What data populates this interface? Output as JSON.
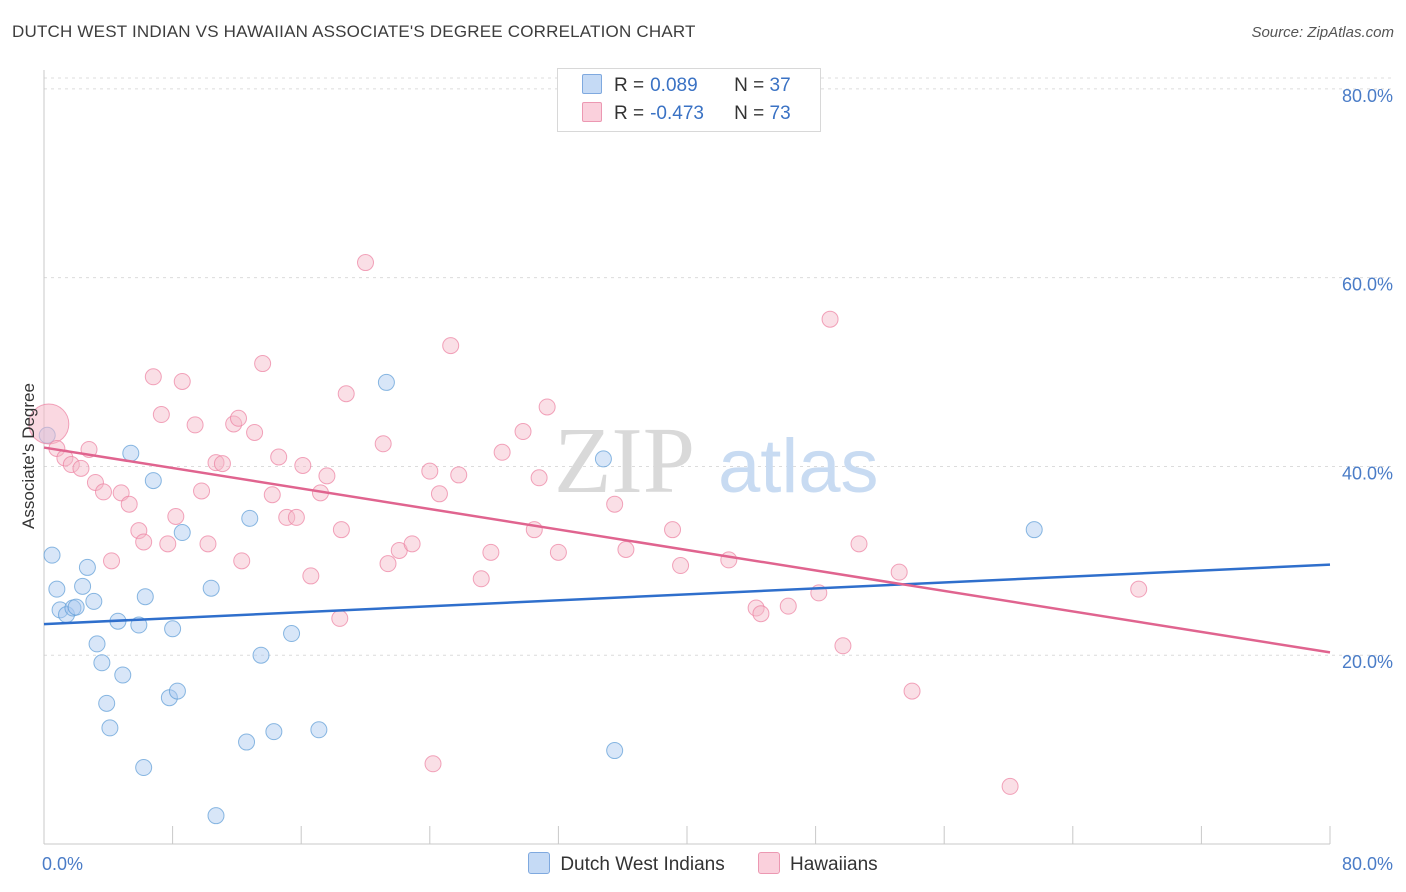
{
  "header": {
    "title": "DUTCH WEST INDIAN VS HAWAIIAN ASSOCIATE'S DEGREE CORRELATION CHART",
    "source": "Source: ZipAtlas.com"
  },
  "watermark": {
    "zip": "ZIP",
    "atlas": "atlas"
  },
  "legend": {
    "rows": [
      {
        "r_label": "R =",
        "r_value": "0.089",
        "n_label": "N =",
        "n_value": "37",
        "color": "#a9c8f0"
      },
      {
        "r_label": "R =",
        "r_value": "-0.473",
        "n_label": "N =",
        "n_value": "73",
        "color": "#f5b8c8"
      }
    ]
  },
  "bottom_legend": {
    "items": [
      {
        "label": "Dutch West Indians",
        "color": "#a9c8f0"
      },
      {
        "label": "Hawaiians",
        "color": "#f5b8c8"
      }
    ]
  },
  "chart_data": {
    "type": "scatter",
    "title": "DUTCH WEST INDIAN VS HAWAIIAN ASSOCIATE'S DEGREE CORRELATION CHART",
    "xlabel": "",
    "ylabel": "Associate's Degree",
    "xlim": [
      0,
      80
    ],
    "ylim": [
      0,
      82
    ],
    "x_tick_labels": [
      "0.0%",
      "80.0%"
    ],
    "y_ticks": [
      20,
      40,
      60,
      80
    ],
    "y_tick_labels": [
      "20.0%",
      "40.0%",
      "60.0%",
      "80.0%"
    ],
    "grid": true,
    "legend_position": "top-center",
    "series": [
      {
        "name": "Dutch West Indians",
        "color": "#5b9bd5",
        "fill": "#a9c8f0",
        "line_color": "#2f6fcc",
        "trend": {
          "x": [
            0,
            80
          ],
          "y": [
            23.3,
            29.6
          ]
        },
        "points": [
          [
            0.2,
            43.3
          ],
          [
            0.5,
            30.6
          ],
          [
            0.8,
            27.0
          ],
          [
            1.0,
            24.8
          ],
          [
            1.4,
            24.3
          ],
          [
            1.8,
            25.0
          ],
          [
            2.0,
            25.1
          ],
          [
            2.4,
            27.3
          ],
          [
            2.7,
            29.3
          ],
          [
            3.1,
            25.7
          ],
          [
            3.3,
            21.2
          ],
          [
            3.6,
            19.2
          ],
          [
            3.9,
            14.9
          ],
          [
            4.1,
            12.3
          ],
          [
            4.6,
            23.6
          ],
          [
            4.9,
            17.9
          ],
          [
            5.4,
            41.4
          ],
          [
            5.9,
            23.2
          ],
          [
            6.2,
            8.1
          ],
          [
            6.3,
            26.2
          ],
          [
            6.8,
            38.5
          ],
          [
            7.8,
            15.5
          ],
          [
            8.0,
            22.8
          ],
          [
            8.3,
            16.2
          ],
          [
            8.6,
            33.0
          ],
          [
            10.4,
            27.1
          ],
          [
            10.7,
            3.0
          ],
          [
            12.6,
            10.8
          ],
          [
            12.8,
            34.5
          ],
          [
            13.5,
            20.0
          ],
          [
            14.3,
            11.9
          ],
          [
            15.4,
            22.3
          ],
          [
            17.1,
            12.1
          ],
          [
            21.3,
            48.9
          ],
          [
            34.8,
            40.8
          ],
          [
            35.5,
            9.9
          ],
          [
            61.6,
            33.3
          ]
        ]
      },
      {
        "name": "Hawaiians",
        "color": "#ec7fa0",
        "fill": "#f5b8c8",
        "line_color": "#e0648f",
        "trend": {
          "x": [
            0,
            80
          ],
          "y": [
            42.0,
            20.3
          ]
        },
        "points": [
          [
            0.3,
            44.5
          ],
          [
            0.8,
            41.9
          ],
          [
            1.3,
            40.9
          ],
          [
            1.7,
            40.2
          ],
          [
            2.3,
            39.8
          ],
          [
            2.8,
            41.8
          ],
          [
            3.2,
            38.3
          ],
          [
            3.7,
            37.3
          ],
          [
            4.2,
            30.0
          ],
          [
            4.8,
            37.2
          ],
          [
            5.3,
            36.0
          ],
          [
            5.9,
            33.2
          ],
          [
            6.2,
            32.0
          ],
          [
            6.8,
            49.5
          ],
          [
            7.3,
            45.5
          ],
          [
            7.7,
            31.8
          ],
          [
            8.2,
            34.7
          ],
          [
            8.6,
            49.0
          ],
          [
            9.4,
            44.4
          ],
          [
            9.8,
            37.4
          ],
          [
            10.2,
            31.8
          ],
          [
            10.7,
            40.4
          ],
          [
            11.1,
            40.3
          ],
          [
            11.8,
            44.5
          ],
          [
            12.1,
            45.1
          ],
          [
            12.3,
            30.0
          ],
          [
            13.1,
            43.6
          ],
          [
            13.6,
            50.9
          ],
          [
            14.2,
            37.0
          ],
          [
            14.6,
            41.0
          ],
          [
            15.1,
            34.6
          ],
          [
            15.7,
            34.6
          ],
          [
            16.1,
            40.1
          ],
          [
            16.6,
            28.4
          ],
          [
            17.2,
            37.2
          ],
          [
            17.6,
            39.0
          ],
          [
            18.5,
            33.3
          ],
          [
            18.8,
            47.7
          ],
          [
            20.0,
            61.6
          ],
          [
            21.1,
            42.4
          ],
          [
            21.4,
            29.7
          ],
          [
            22.1,
            31.1
          ],
          [
            22.9,
            31.8
          ],
          [
            24.0,
            39.5
          ],
          [
            24.6,
            37.1
          ],
          [
            25.3,
            52.8
          ],
          [
            25.8,
            39.1
          ],
          [
            27.2,
            28.1
          ],
          [
            27.8,
            30.9
          ],
          [
            28.5,
            41.5
          ],
          [
            29.8,
            43.7
          ],
          [
            30.5,
            33.3
          ],
          [
            30.8,
            38.8
          ],
          [
            31.3,
            46.3
          ],
          [
            32.0,
            30.9
          ],
          [
            35.5,
            36.0
          ],
          [
            36.2,
            31.2
          ],
          [
            39.1,
            33.3
          ],
          [
            39.6,
            29.5
          ],
          [
            42.6,
            30.1
          ],
          [
            44.3,
            25.0
          ],
          [
            44.6,
            24.4
          ],
          [
            46.3,
            25.2
          ],
          [
            48.2,
            26.6
          ],
          [
            48.9,
            55.6
          ],
          [
            49.7,
            21.0
          ],
          [
            50.7,
            31.8
          ],
          [
            53.2,
            28.8
          ],
          [
            54.0,
            16.2
          ],
          [
            60.1,
            6.1
          ],
          [
            68.1,
            27.0
          ],
          [
            18.4,
            23.9
          ],
          [
            24.2,
            8.5
          ]
        ]
      }
    ]
  }
}
